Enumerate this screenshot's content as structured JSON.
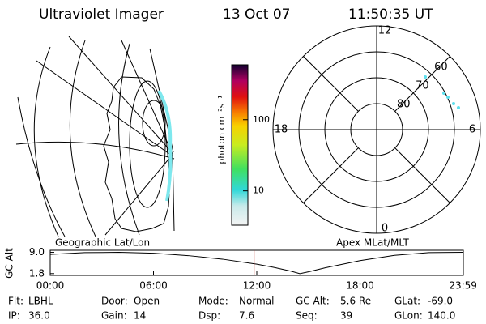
{
  "header": {
    "instrument": "Ultraviolet Imager",
    "date": "13 Oct 07",
    "time": "11:50:35 UT"
  },
  "colorbar": {
    "label": "photon cm⁻²s⁻¹",
    "lim": [
      3.3,
      590
    ],
    "log": true,
    "ticks": [
      10,
      100
    ]
  },
  "polar": {
    "lat_lim": [
      90,
      50
    ],
    "lat_ticks": [
      80,
      70,
      60
    ],
    "mlt_ticks": [
      12,
      18,
      6,
      0
    ]
  },
  "altitude": {
    "left_label": "Geographic Lat/Lon",
    "right_label": "Apex MLat/MLT",
    "ylabel": "GC Alt",
    "ylim": [
      1.2,
      9.7
    ],
    "yticks": [
      {
        "value": 9.0,
        "label": "9.0"
      },
      {
        "value": 1.8,
        "label": "1.8"
      }
    ],
    "xlim": [
      0,
      1440
    ],
    "xticks": [
      {
        "value": 0,
        "label": "00:00"
      },
      {
        "value": 360,
        "label": "06:00"
      },
      {
        "value": 720,
        "label": "12:00"
      },
      {
        "value": 1080,
        "label": "18:00"
      },
      {
        "value": 1439,
        "label": "23:59"
      }
    ],
    "x": [
      0,
      120,
      240,
      360,
      480,
      600,
      720,
      780,
      840,
      870,
      900,
      960,
      1080,
      1200,
      1320,
      1439
    ],
    "values": [
      8.3,
      8.9,
      9.0,
      8.7,
      7.9,
      6.7,
      5.0,
      3.9,
      2.6,
      1.8,
      2.4,
      3.8,
      6.2,
      8.0,
      8.9,
      9.0
    ],
    "marker": 710.6,
    "marker_color": "#c0302a"
  },
  "footer": [
    [
      [
        "Flt:",
        "LBHL"
      ],
      [
        "Door:",
        "Open"
      ],
      [
        "Mode:",
        "Normal"
      ],
      [
        "GC Alt:",
        "5.6 Re"
      ],
      [
        "GLat:",
        "-69.0"
      ]
    ],
    [
      [
        "IP:",
        "36.0"
      ],
      [
        "Gain:",
        "14"
      ],
      [
        "Dsp:",
        "7.6"
      ],
      [
        "Seq:",
        "39"
      ],
      [
        "GLon:",
        "140.0"
      ]
    ]
  ]
}
